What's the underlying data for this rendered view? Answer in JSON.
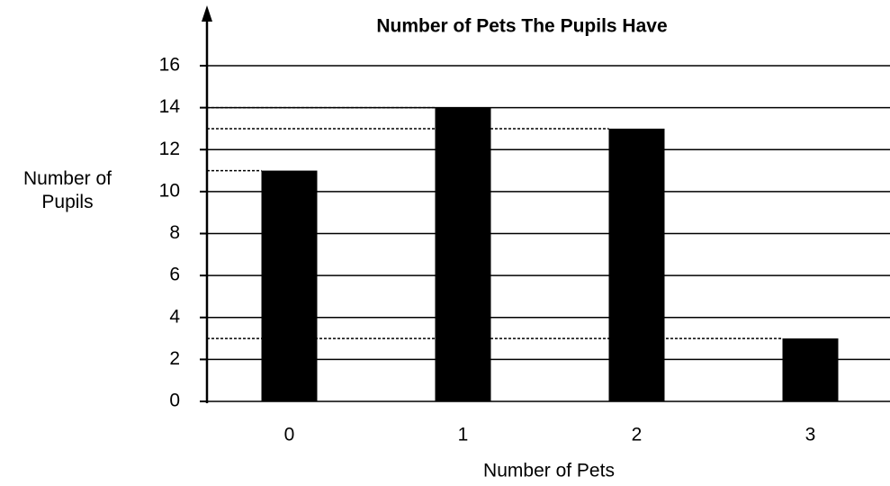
{
  "chart_data": {
    "type": "bar",
    "title": "Number of Pets The Pupils Have",
    "xlabel": "Number of Pets",
    "ylabel": "Number of Pupils",
    "categories": [
      "0",
      "1",
      "2",
      "3"
    ],
    "values": [
      11,
      14,
      13,
      3
    ],
    "color": "#000000",
    "ylim": [
      0,
      17
    ],
    "yticks": [
      0,
      2,
      4,
      6,
      8,
      10,
      12,
      14,
      16
    ],
    "grid": true
  }
}
